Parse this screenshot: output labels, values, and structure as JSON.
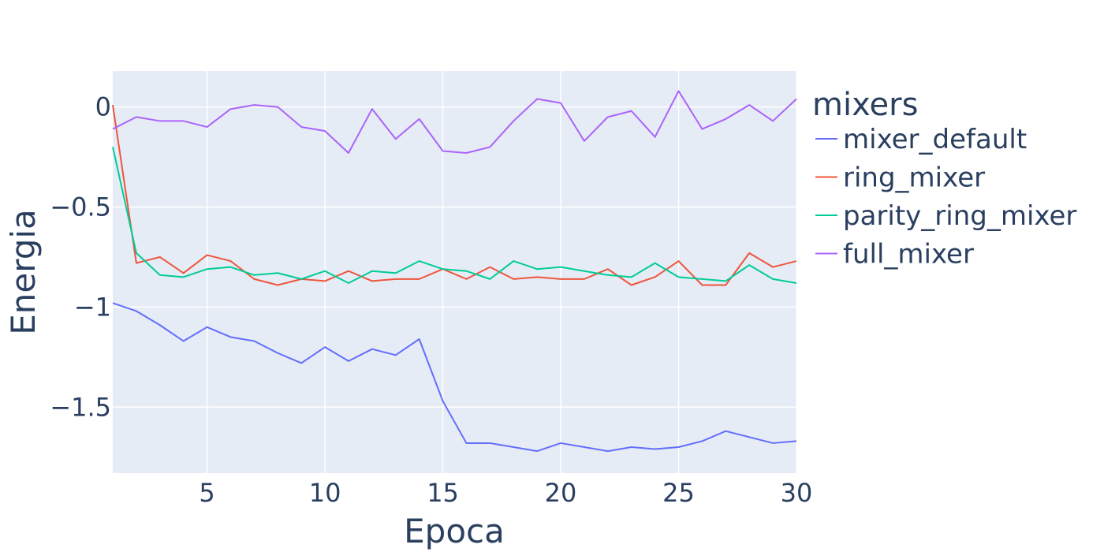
{
  "chart_data": {
    "type": "line",
    "xlabel": "Epoca",
    "ylabel": "Energia",
    "xlim": [
      1,
      30
    ],
    "ylim": [
      -1.83,
      0.18
    ],
    "xticks": [
      5,
      10,
      15,
      20,
      25,
      30
    ],
    "xtick_labels": [
      "5",
      "10",
      "15",
      "20",
      "25",
      "30"
    ],
    "yticks": [
      0,
      -0.5,
      -1,
      -1.5
    ],
    "ytick_labels": [
      "0",
      "−0.5",
      "−1",
      "−1.5"
    ],
    "grid": true,
    "legend": {
      "title": "mixers",
      "position": "right"
    },
    "x": [
      1,
      2,
      3,
      4,
      5,
      6,
      7,
      8,
      9,
      10,
      11,
      12,
      13,
      14,
      15,
      16,
      17,
      18,
      19,
      20,
      21,
      22,
      23,
      24,
      25,
      26,
      27,
      28,
      29,
      30
    ],
    "series": [
      {
        "name": "mixer_default",
        "color": "#636efa",
        "values": [
          -0.98,
          -1.02,
          -1.09,
          -1.17,
          -1.1,
          -1.15,
          -1.17,
          -1.23,
          -1.28,
          -1.2,
          -1.27,
          -1.21,
          -1.24,
          -1.16,
          -1.47,
          -1.68,
          -1.68,
          -1.7,
          -1.72,
          -1.68,
          -1.7,
          -1.72,
          -1.7,
          -1.71,
          -1.7,
          -1.67,
          -1.62,
          -1.65,
          -1.68,
          -1.67
        ]
      },
      {
        "name": "ring_mixer",
        "color": "#ef553b",
        "values": [
          0.01,
          -0.78,
          -0.75,
          -0.83,
          -0.74,
          -0.77,
          -0.86,
          -0.89,
          -0.86,
          -0.87,
          -0.82,
          -0.87,
          -0.86,
          -0.86,
          -0.81,
          -0.86,
          -0.8,
          -0.86,
          -0.85,
          -0.86,
          -0.86,
          -0.81,
          -0.89,
          -0.85,
          -0.77,
          -0.89,
          -0.89,
          -0.73,
          -0.8,
          -0.77
        ]
      },
      {
        "name": "parity_ring_mixer",
        "color": "#00cc96",
        "values": [
          -0.2,
          -0.73,
          -0.84,
          -0.85,
          -0.81,
          -0.8,
          -0.84,
          -0.83,
          -0.86,
          -0.82,
          -0.88,
          -0.82,
          -0.83,
          -0.77,
          -0.81,
          -0.82,
          -0.86,
          -0.77,
          -0.81,
          -0.8,
          -0.82,
          -0.84,
          -0.85,
          -0.78,
          -0.85,
          -0.86,
          -0.87,
          -0.79,
          -0.86,
          -0.88
        ]
      },
      {
        "name": "full_mixer",
        "color": "#ab63fa",
        "values": [
          -0.11,
          -0.05,
          -0.07,
          -0.07,
          -0.1,
          -0.01,
          0.01,
          0.0,
          -0.1,
          -0.12,
          -0.23,
          -0.01,
          -0.16,
          -0.06,
          -0.22,
          -0.23,
          -0.2,
          -0.07,
          0.04,
          0.02,
          -0.17,
          -0.05,
          -0.02,
          -0.15,
          0.08,
          -0.11,
          -0.06,
          0.01,
          -0.07,
          0.04
        ]
      }
    ]
  }
}
